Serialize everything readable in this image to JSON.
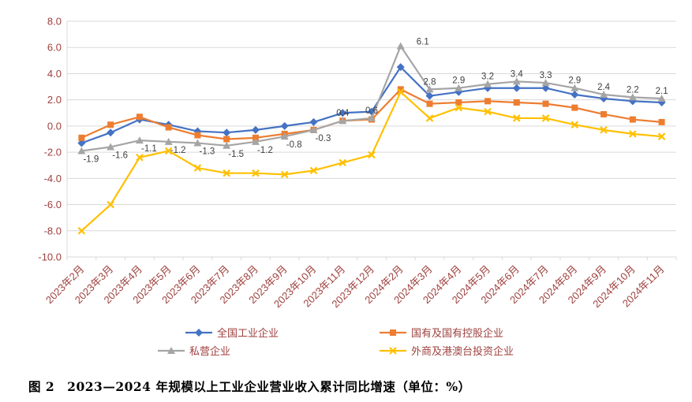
{
  "caption": "图 2　2023—2024 年规模以上工业企业营业收入累计同比增速（单位：%）",
  "colors": {
    "axis_text": "#9E413E",
    "grid": "#D9D9D9",
    "label_text": "#3F3F3F",
    "background": "#FFFFFF"
  },
  "chart_data": {
    "type": "line",
    "title": "",
    "xlabel": "",
    "ylabel": "",
    "unit": "%",
    "grid": true,
    "legend_position": "bottom",
    "ylim": [
      -10,
      8
    ],
    "y_tick_values": [
      8,
      6,
      4,
      2,
      0,
      -2,
      -4,
      -6,
      -8,
      -10
    ],
    "y_tick_labels": [
      "8.0",
      "6.0",
      "4.0",
      "2.0",
      "0.0",
      "-2.0",
      "-4.0",
      "-6.0",
      "-8.0",
      "-10.0"
    ],
    "categories": [
      "2023年2月",
      "2023年3月",
      "2023年4月",
      "2023年5月",
      "2023年6月",
      "2023年7月",
      "2023年8月",
      "2023年9月",
      "2023年10月",
      "2023年11月",
      "2023年12月",
      "2024年2月",
      "2024年3月",
      "2024年4月",
      "2024年5月",
      "2024年6月",
      "2024年7月",
      "2024年8月",
      "2024年9月",
      "2024年10月",
      "2024年11月"
    ],
    "series": [
      {
        "name": "全国工业企业",
        "marker": "diamond",
        "color": "#4472C4",
        "data_labels": false,
        "values": [
          -1.3,
          -0.5,
          0.5,
          0.1,
          -0.4,
          -0.5,
          -0.3,
          0.0,
          0.3,
          1.0,
          1.1,
          4.5,
          2.3,
          2.6,
          2.9,
          2.9,
          2.9,
          2.4,
          2.1,
          1.9,
          1.8
        ]
      },
      {
        "name": "国有及国有控股企业",
        "marker": "square",
        "color": "#ED7D31",
        "data_labels": false,
        "values": [
          -0.9,
          0.1,
          0.7,
          -0.1,
          -0.7,
          -1.0,
          -0.9,
          -0.6,
          -0.3,
          0.4,
          0.5,
          2.8,
          1.7,
          1.8,
          1.9,
          1.8,
          1.7,
          1.4,
          0.9,
          0.5,
          0.3
        ]
      },
      {
        "name": "私营企业",
        "marker": "triangle",
        "color": "#A5A5A5",
        "data_labels": true,
        "values": [
          -1.9,
          -1.6,
          -1.1,
          -1.2,
          -1.3,
          -1.5,
          -1.2,
          -0.8,
          -0.3,
          0.4,
          0.6,
          6.1,
          2.8,
          2.9,
          3.2,
          3.4,
          3.3,
          2.9,
          2.4,
          2.2,
          2.1
        ]
      },
      {
        "name": "外商及港澳台投资企业",
        "marker": "x",
        "color": "#FFC000",
        "data_labels": false,
        "values": [
          -8.0,
          -6.0,
          -2.4,
          -1.9,
          -3.2,
          -3.6,
          -3.6,
          -3.7,
          -3.4,
          -2.8,
          -2.2,
          2.6,
          0.6,
          1.4,
          1.1,
          0.6,
          0.6,
          0.1,
          -0.3,
          -0.6,
          -0.8
        ]
      }
    ]
  }
}
